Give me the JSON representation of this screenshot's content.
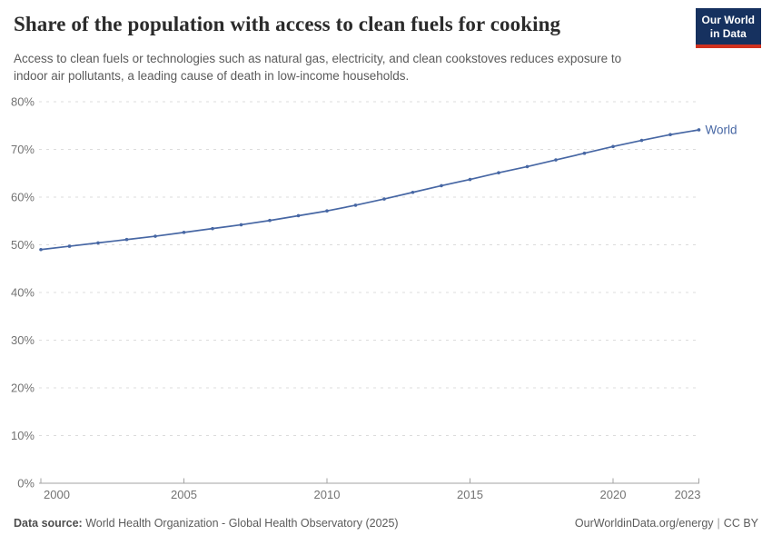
{
  "header": {
    "title": "Share of the population with access to clean fuels for cooking",
    "subtitle_lines": [
      "Access to clean fuels or technologies such as natural gas, electricity, and clean cookstoves reduces exposure to",
      "indoor air pollutants, a leading cause of death in low-income households."
    ],
    "logo_lines": [
      "Our World",
      "in Data"
    ],
    "logo_bg_color": "#16315f",
    "logo_accent_color": "#d0311f"
  },
  "chart_data": {
    "type": "line",
    "title": "Share of the population with access to clean fuels for cooking",
    "xlabel": "",
    "ylabel": "",
    "xlim": [
      2000,
      2023
    ],
    "ylim": [
      0,
      80
    ],
    "x_ticks": [
      2000,
      2005,
      2010,
      2015,
      2020,
      2023
    ],
    "y_ticks": [
      0,
      10,
      20,
      30,
      40,
      50,
      60,
      70,
      80
    ],
    "y_tick_suffix": "%",
    "grid": "horizontal-dashed",
    "legend_position": "end-of-line-label",
    "series": [
      {
        "name": "World",
        "color": "#4767a4",
        "x": [
          2000,
          2001,
          2002,
          2003,
          2004,
          2005,
          2006,
          2007,
          2008,
          2009,
          2010,
          2011,
          2012,
          2013,
          2014,
          2015,
          2016,
          2017,
          2018,
          2019,
          2020,
          2021,
          2022,
          2023
        ],
        "y": [
          49.0,
          49.7,
          50.4,
          51.1,
          51.8,
          52.6,
          53.4,
          54.2,
          55.1,
          56.1,
          57.1,
          58.3,
          59.6,
          61.0,
          62.4,
          63.7,
          65.1,
          66.4,
          67.8,
          69.2,
          70.6,
          71.9,
          73.1,
          74.1
        ]
      }
    ],
    "axis_color": "#a3a3a3",
    "gridline_color": "#dcdcdc",
    "tick_label_color": "#737373"
  },
  "footer": {
    "source_label": "Data source:",
    "source_text": "World Health Organization - Global Health Observatory (2025)",
    "site_link": "OurWorldinData.org/energy",
    "separator": "|",
    "license": "CC BY"
  }
}
